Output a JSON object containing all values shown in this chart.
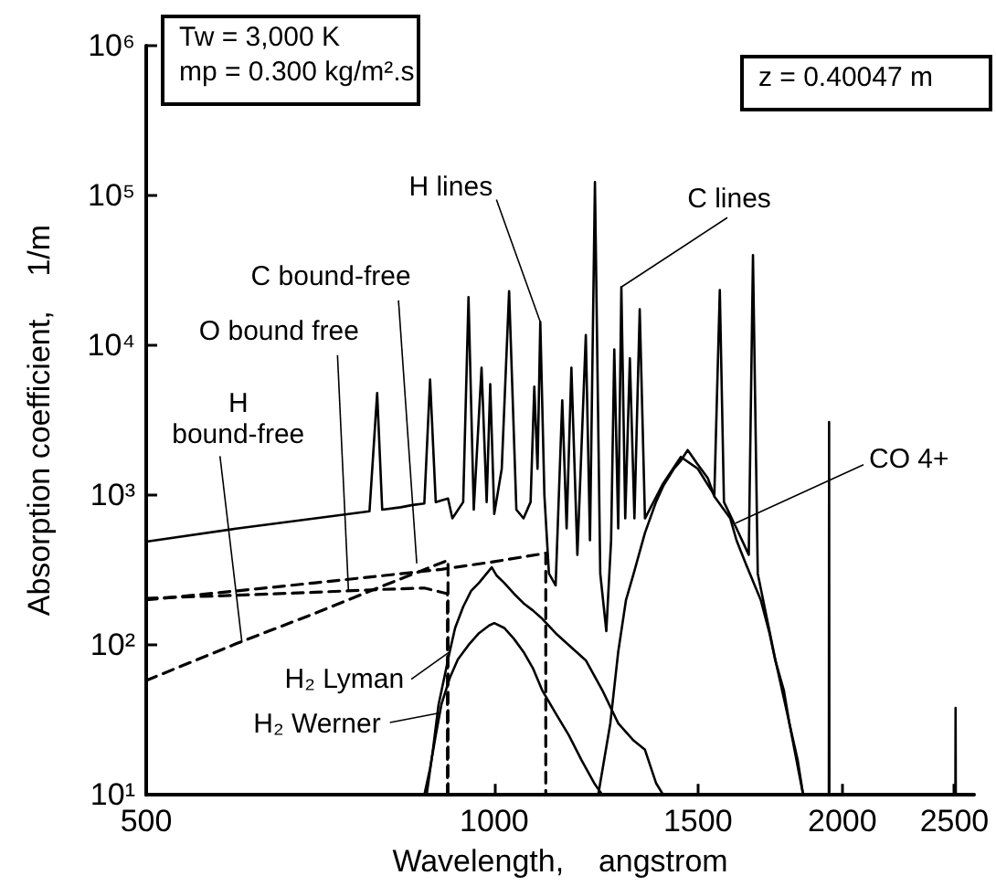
{
  "chart_data": {
    "type": "line",
    "xlabel": "Wavelength,    angstrom",
    "ylabel": "Absorption coefficient,    1/m",
    "log": "xy",
    "grid": false,
    "marker": "none",
    "line_style": "solid",
    "xlim": [
      500,
      2600
    ],
    "xticks": [
      500,
      1000,
      1500,
      2000,
      2500
    ],
    "ylim": [
      10,
      1000000
    ],
    "yticks": [
      {
        "value": 10,
        "label": "10¹"
      },
      {
        "value": 100,
        "label": "10²"
      },
      {
        "value": 1000,
        "label": "10³"
      },
      {
        "value": 10000,
        "label": "10⁴"
      },
      {
        "value": 100000,
        "label": "10⁵"
      },
      {
        "value": 1000000,
        "label": "10⁶"
      }
    ],
    "series": [
      {
        "color": "#000000",
        "x": [
          500,
          600,
          700,
          780,
          792,
          800,
          830,
          850,
          870,
          880,
          890,
          912,
          920,
          940,
          950,
          960,
          975,
          985,
          992,
          1000,
          1015,
          1030,
          1045,
          1060,
          1075,
          1083,
          1090,
          1096,
          1105,
          1115,
          1130,
          1145,
          1155,
          1166,
          1180,
          1200,
          1210,
          1222,
          1235,
          1250,
          1262,
          1270,
          1280,
          1288,
          1298,
          1310,
          1322,
          1336,
          1350,
          1400,
          1450,
          1500,
          1550,
          1567,
          1580,
          1620,
          1660,
          1674,
          1690,
          1750,
          1800,
          1850,
          1947,
          1948,
          1949,
          2505,
          2506,
          2507
        ],
        "values": [
          490,
          600,
          700,
          780,
          4800,
          800,
          830,
          860,
          880,
          5900,
          900,
          950,
          700,
          900,
          21000,
          800,
          7100,
          900,
          5500,
          750,
          1500,
          23000,
          800,
          700,
          900,
          5300,
          1500,
          14300,
          1000,
          300,
          250,
          4300,
          600,
          7100,
          400,
          11700,
          500,
          123000,
          300,
          124,
          500,
          9400,
          600,
          24500,
          700,
          8200,
          700,
          17400,
          700,
          1200,
          1800,
          1500,
          1000,
          23400,
          900,
          600,
          400,
          40000,
          300,
          80,
          30,
          10,
          10,
          3080,
          10,
          10,
          38,
          10
        ]
      },
      {
        "color": "#000000",
        "line_style": "dashed",
        "x": [
          500,
          600,
          700,
          800,
          912,
          912
        ],
        "values": [
          58,
          103,
          163,
          247,
          368,
          10
        ]
      },
      {
        "color": "#000000",
        "line_style": "dashed",
        "x": [
          500,
          600,
          700,
          800,
          870,
          911,
          911
        ],
        "values": [
          205,
          215,
          225,
          235,
          240,
          220,
          10
        ]
      },
      {
        "color": "#000000",
        "line_style": "dashed",
        "x": [
          500,
          600,
          700,
          800,
          900,
          1000,
          1108,
          1108
        ],
        "values": [
          200,
          230,
          260,
          290,
          320,
          360,
          410,
          10
        ]
      },
      {
        "color": "#000000",
        "x": [
          874,
          885,
          895,
          905,
          915,
          925,
          940,
          955,
          970,
          985,
          995,
          1005,
          1020,
          1040,
          1060,
          1080,
          1100,
          1130,
          1160,
          1200,
          1240,
          1280,
          1320,
          1350,
          1380,
          1400
        ],
        "values": [
          10,
          20,
          40,
          60,
          90,
          130,
          180,
          230,
          260,
          300,
          330,
          290,
          260,
          220,
          190,
          170,
          150,
          120,
          100,
          79,
          50,
          30,
          23,
          20,
          12,
          10
        ]
      },
      {
        "color": "#000000",
        "x": [
          870,
          880,
          890,
          900,
          915,
          930,
          950,
          970,
          990,
          1000,
          1020,
          1040,
          1060,
          1080,
          1100,
          1130,
          1160,
          1190,
          1220,
          1240
        ],
        "values": [
          10,
          15,
          25,
          40,
          60,
          80,
          100,
          120,
          135,
          140,
          130,
          110,
          90,
          70,
          50,
          35,
          25,
          17,
          12,
          10
        ]
      },
      {
        "color": "#000000",
        "x": [
          1230,
          1260,
          1280,
          1300,
          1320,
          1350,
          1380,
          1400,
          1430,
          1450,
          1470,
          1500,
          1530,
          1550,
          1580,
          1600,
          1620,
          1650,
          1680,
          1700,
          1730,
          1750,
          1780,
          1800,
          1830,
          1850
        ],
        "values": [
          10,
          30,
          90,
          200,
          300,
          560,
          900,
          1150,
          1500,
          1700,
          2000,
          1600,
          1300,
          980,
          800,
          700,
          500,
          350,
          250,
          200,
          120,
          79,
          50,
          30,
          17,
          10
        ]
      }
    ],
    "annotations": [
      "Tw = 3,000 K",
      "mp = 0.300 kg/m².s",
      "z = 0.40047 m",
      {
        "text": "H lines",
        "x": 1096,
        "y": 14300
      },
      {
        "text": "C lines",
        "x": 1288,
        "y": 24500
      },
      {
        "text": "C bound-free",
        "x": 857,
        "y": 350
      },
      {
        "text": "O bound free",
        "x": 748,
        "y": 230
      },
      {
        "text": "H\nbound-free",
        "x": 605,
        "y": 104
      },
      {
        "text": "CO 4+",
        "x": 1617,
        "y": 650
      },
      {
        "text": "H₂ Lyman",
        "x": 915,
        "y": 90
      },
      {
        "text": "H₂ Werner",
        "x": 893,
        "y": 35
      }
    ]
  }
}
